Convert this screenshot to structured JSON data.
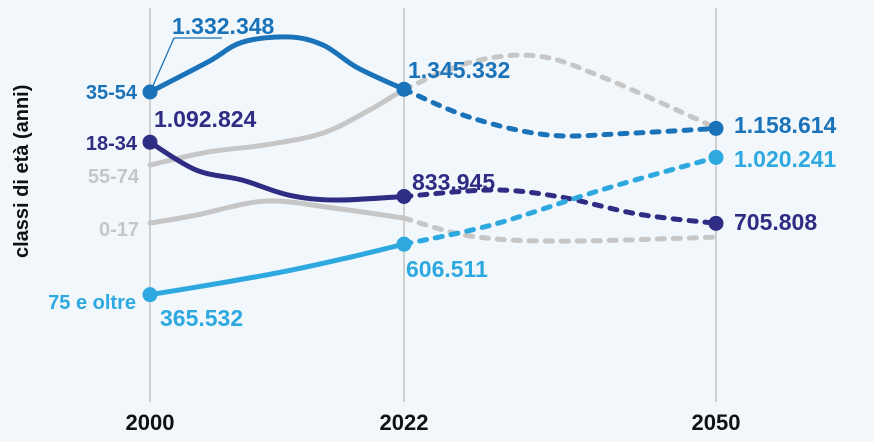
{
  "chart_data": {
    "type": "line",
    "title": "",
    "ylabel": "classi di età (anni)",
    "xlabel": "",
    "x_ticks": [
      "2000",
      "2022",
      "2050"
    ],
    "projection_from": 2022,
    "grid": "vertical lines at tick years",
    "series": [
      {
        "name": "55-74",
        "label": "55-74",
        "color": "#c6c6c6",
        "points": [
          [
            2000,
            984000
          ],
          [
            2005,
            1046000
          ],
          [
            2010,
            1080000
          ],
          [
            2015,
            1137000
          ],
          [
            2019,
            1246000
          ],
          [
            2022,
            1345000
          ],
          [
            2028,
            1475000
          ],
          [
            2034,
            1504000
          ],
          [
            2040,
            1399000
          ],
          [
            2050,
            1161000
          ]
        ]
      },
      {
        "name": "0-17",
        "label": "0-17",
        "color": "#c6c6c6",
        "points": [
          [
            2000,
            707000
          ],
          [
            2004,
            745000
          ],
          [
            2010,
            812000
          ],
          [
            2016,
            778000
          ],
          [
            2022,
            731000
          ],
          [
            2028,
            645000
          ],
          [
            2036,
            621000
          ],
          [
            2050,
            640000
          ]
        ]
      },
      {
        "name": "35-54",
        "label": "35-54",
        "color": "#1a72b8",
        "points": [
          [
            2000,
            1332348
          ],
          [
            2005,
            1475000
          ],
          [
            2008,
            1570000
          ],
          [
            2012,
            1595000
          ],
          [
            2015,
            1556000
          ],
          [
            2018,
            1447000
          ],
          [
            2022,
            1345332
          ],
          [
            2028,
            1210000
          ],
          [
            2035,
            1127000
          ],
          [
            2042,
            1135000
          ],
          [
            2050,
            1158614
          ]
        ],
        "labels": [
          "1.332.348",
          "1.345.332",
          "1.158.614"
        ]
      },
      {
        "name": "18-34",
        "label": "18-34",
        "color": "#2e2d83",
        "points": [
          [
            2000,
            1092824
          ],
          [
            2004,
            960000
          ],
          [
            2008,
            912000
          ],
          [
            2012,
            841000
          ],
          [
            2016,
            817000
          ],
          [
            2022,
            833945
          ],
          [
            2030,
            865000
          ],
          [
            2036,
            832000
          ],
          [
            2043,
            750000
          ],
          [
            2050,
            705808
          ]
        ],
        "labels": [
          "1.092.824",
          "833.945",
          "705.808"
        ]
      },
      {
        "name": "75 e oltre",
        "label": "75 e oltre",
        "color": "#2ea9e0",
        "points": [
          [
            2000,
            365532
          ],
          [
            2006,
            420000
          ],
          [
            2012,
            480000
          ],
          [
            2017,
            540000
          ],
          [
            2022,
            606511
          ],
          [
            2030,
            700000
          ],
          [
            2040,
            870000
          ],
          [
            2050,
            1020241
          ]
        ],
        "labels": [
          "365.532",
          "606.511",
          "1.020.241"
        ]
      }
    ]
  }
}
